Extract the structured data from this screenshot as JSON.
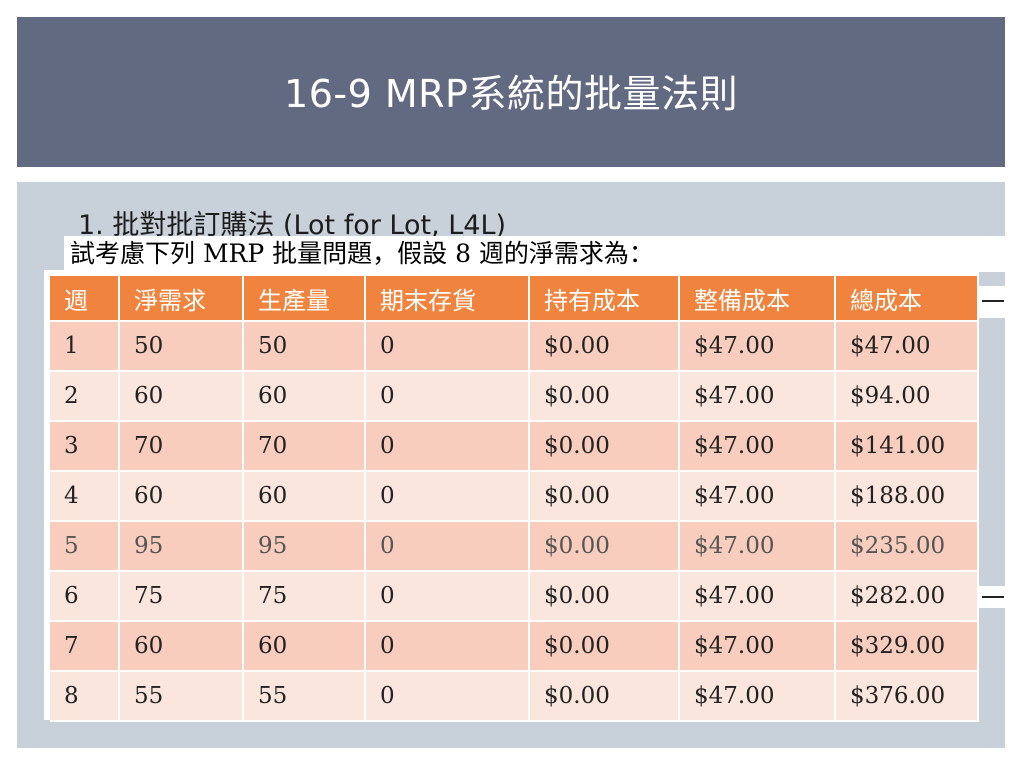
{
  "slide": {
    "title": "16-9 MRP系統的批量法則",
    "bullet": "1. 批對批訂購法 (Lot for Lot, L4L)",
    "question": "試考慮下列 MRP 批量問題，假設 8 週的淨需求為："
  },
  "table": {
    "headers": [
      "週",
      "淨需求",
      "生產量",
      "期末存貨",
      "持有成本",
      "整備成本",
      "總成本"
    ],
    "rows": [
      [
        "1",
        "50",
        "50",
        "0",
        "$0.00",
        "$47.00",
        "$47.00"
      ],
      [
        "2",
        "60",
        "60",
        "0",
        "$0.00",
        "$47.00",
        "$94.00"
      ],
      [
        "3",
        "70",
        "70",
        "0",
        "$0.00",
        "$47.00",
        "$141.00"
      ],
      [
        "4",
        "60",
        "60",
        "0",
        "$0.00",
        "$47.00",
        "$188.00"
      ],
      [
        "5",
        "95",
        "95",
        "0",
        "$0.00",
        "$47.00",
        "$235.00"
      ],
      [
        "6",
        "75",
        "75",
        "0",
        "$0.00",
        "$47.00",
        "$282.00"
      ],
      [
        "7",
        "60",
        "60",
        "0",
        "$0.00",
        "$47.00",
        "$329.00"
      ],
      [
        "8",
        "55",
        "55",
        "0",
        "$0.00",
        "$47.00",
        "$376.00"
      ]
    ]
  },
  "colors": {
    "title_bar": "#626a82",
    "content_panel": "#c8d1da",
    "table_header": "#f0843e",
    "row_dark": "#f8cdbd",
    "row_light": "#fbe6de"
  }
}
